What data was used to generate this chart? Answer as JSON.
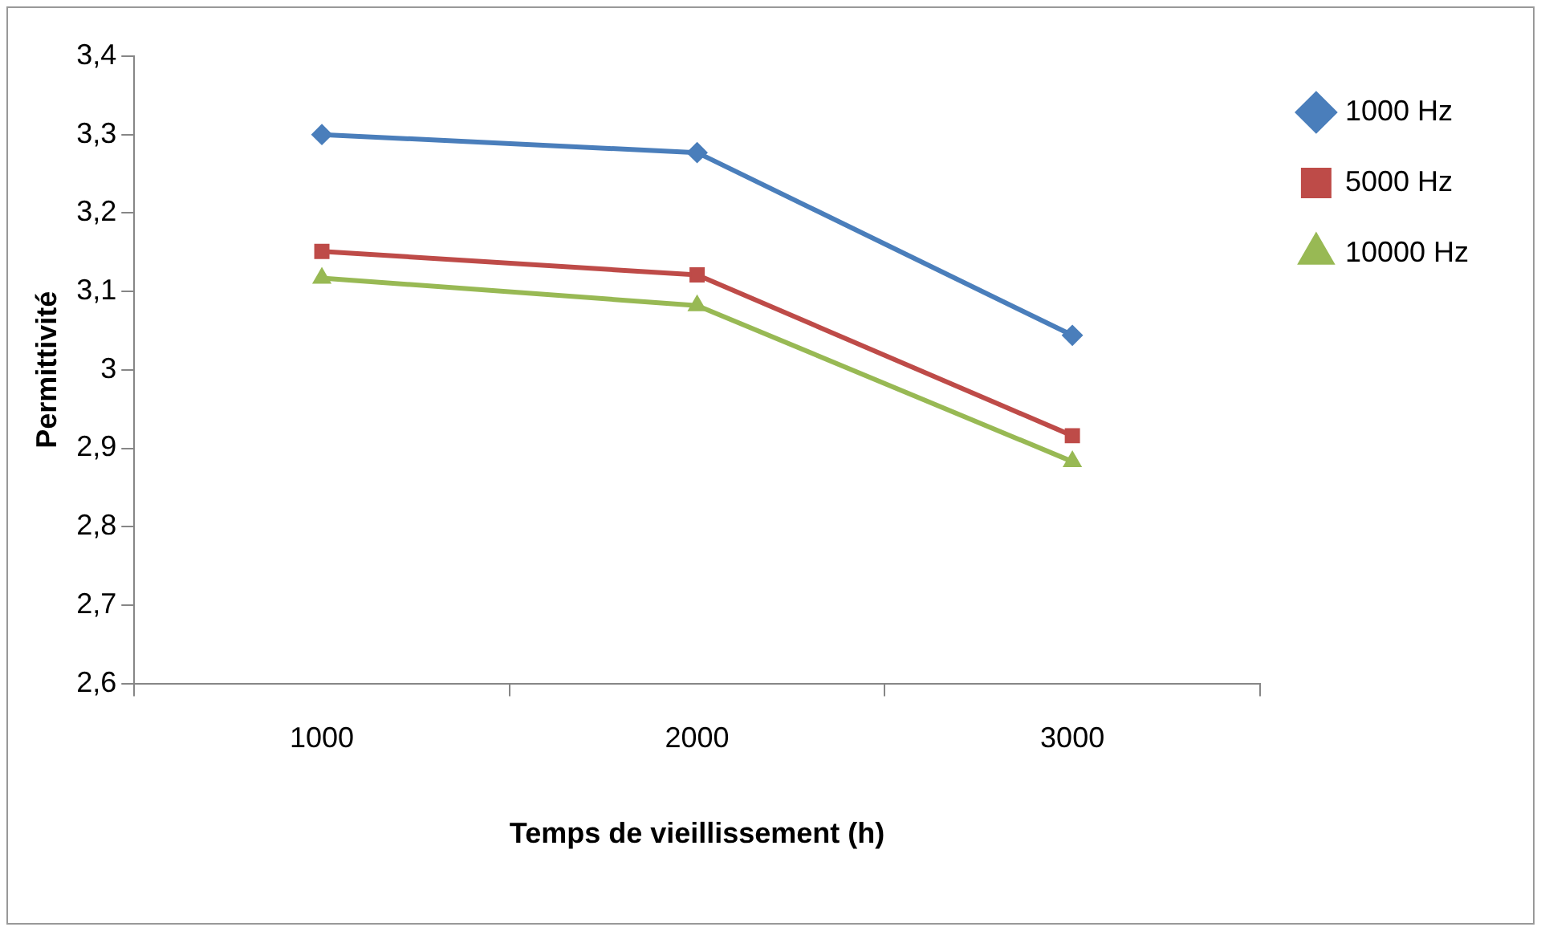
{
  "chart_data": {
    "type": "line",
    "xlabel": "Temps de vieillissement (h)",
    "ylabel": "Permittivité",
    "categories": [
      "1000",
      "2000",
      "3000"
    ],
    "series": [
      {
        "name": "1000 Hz",
        "color": "#4a7ebb",
        "marker": "diamond",
        "values": [
          3.3,
          3.277,
          3.044
        ]
      },
      {
        "name": "5000 Hz",
        "color": "#be4b48",
        "marker": "square",
        "values": [
          3.151,
          3.121,
          2.916
        ]
      },
      {
        "name": "10000 Hz",
        "color": "#98b954",
        "marker": "triangle",
        "values": [
          3.117,
          3.082,
          2.883
        ]
      }
    ],
    "ylim": [
      2.6,
      3.4
    ],
    "yticks": [
      {
        "value": 2.6,
        "label": "2,6"
      },
      {
        "value": 2.7,
        "label": "2,7"
      },
      {
        "value": 2.8,
        "label": "2,8"
      },
      {
        "value": 2.9,
        "label": "2,9"
      },
      3,
      {
        "value": 3.1,
        "label": "3,1"
      },
      {
        "value": 3.2,
        "label": "3,2"
      },
      {
        "value": 3.3,
        "label": "3,3"
      },
      {
        "value": 3.4,
        "label": "3,4"
      }
    ],
    "grid": false,
    "legend": "right",
    "line_style": "solid"
  }
}
